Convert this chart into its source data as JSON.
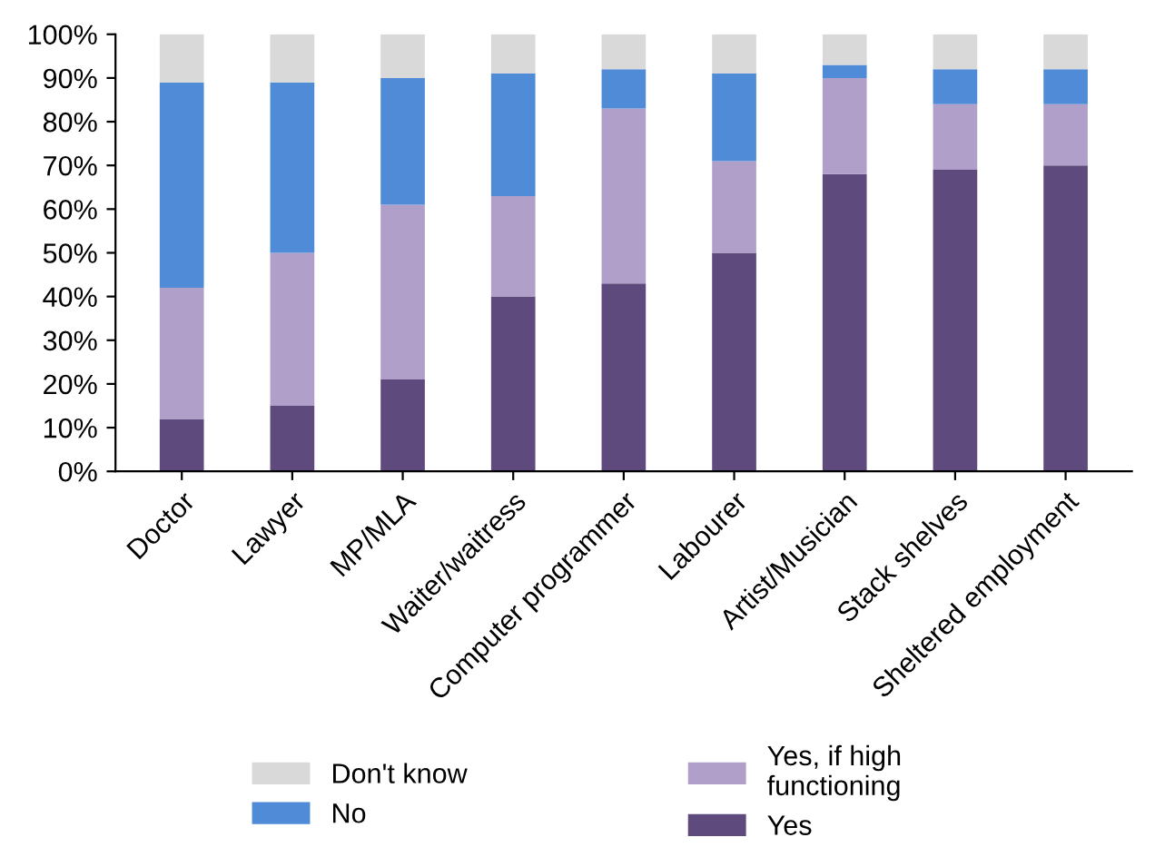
{
  "chart_data": {
    "type": "bar",
    "stacked": true,
    "categories": [
      "Doctor",
      "Lawyer",
      "MP/MLA",
      "Waiter/waitress",
      "Computer programmer",
      "Labourer",
      "Artist/Musician",
      "Stack shelves",
      "Sheltered employment"
    ],
    "series": [
      {
        "name": "Yes",
        "color": "#5e4a7c",
        "values": [
          12,
          15,
          21,
          40,
          43,
          50,
          68,
          69,
          70
        ]
      },
      {
        "name": "Yes, if high\nfunctioning",
        "color": "#b09fc9",
        "values": [
          30,
          35,
          40,
          23,
          40,
          21,
          22,
          15,
          14
        ]
      },
      {
        "name": "No",
        "color": "#4f8bd6",
        "values": [
          47,
          39,
          29,
          28,
          9,
          20,
          3,
          8,
          8
        ]
      },
      {
        "name": "Don't know",
        "color": "#d9d9d9",
        "values": [
          11,
          11,
          10,
          9,
          8,
          9,
          7,
          8,
          8
        ]
      }
    ],
    "ylim": [
      0,
      100
    ],
    "yticks": [
      {
        "value": 0,
        "label": "0%"
      },
      {
        "value": 10,
        "label": "10%"
      },
      {
        "value": 20,
        "label": "20%"
      },
      {
        "value": 30,
        "label": "30%"
      },
      {
        "value": 40,
        "label": "40%"
      },
      {
        "value": 50,
        "label": "50%"
      },
      {
        "value": 60,
        "label": "60%"
      },
      {
        "value": 70,
        "label": "70%"
      },
      {
        "value": 80,
        "label": "80%"
      },
      {
        "value": 90,
        "label": "90%"
      },
      {
        "value": 100,
        "label": "100%"
      }
    ],
    "grid": false,
    "legend": "bottom"
  }
}
